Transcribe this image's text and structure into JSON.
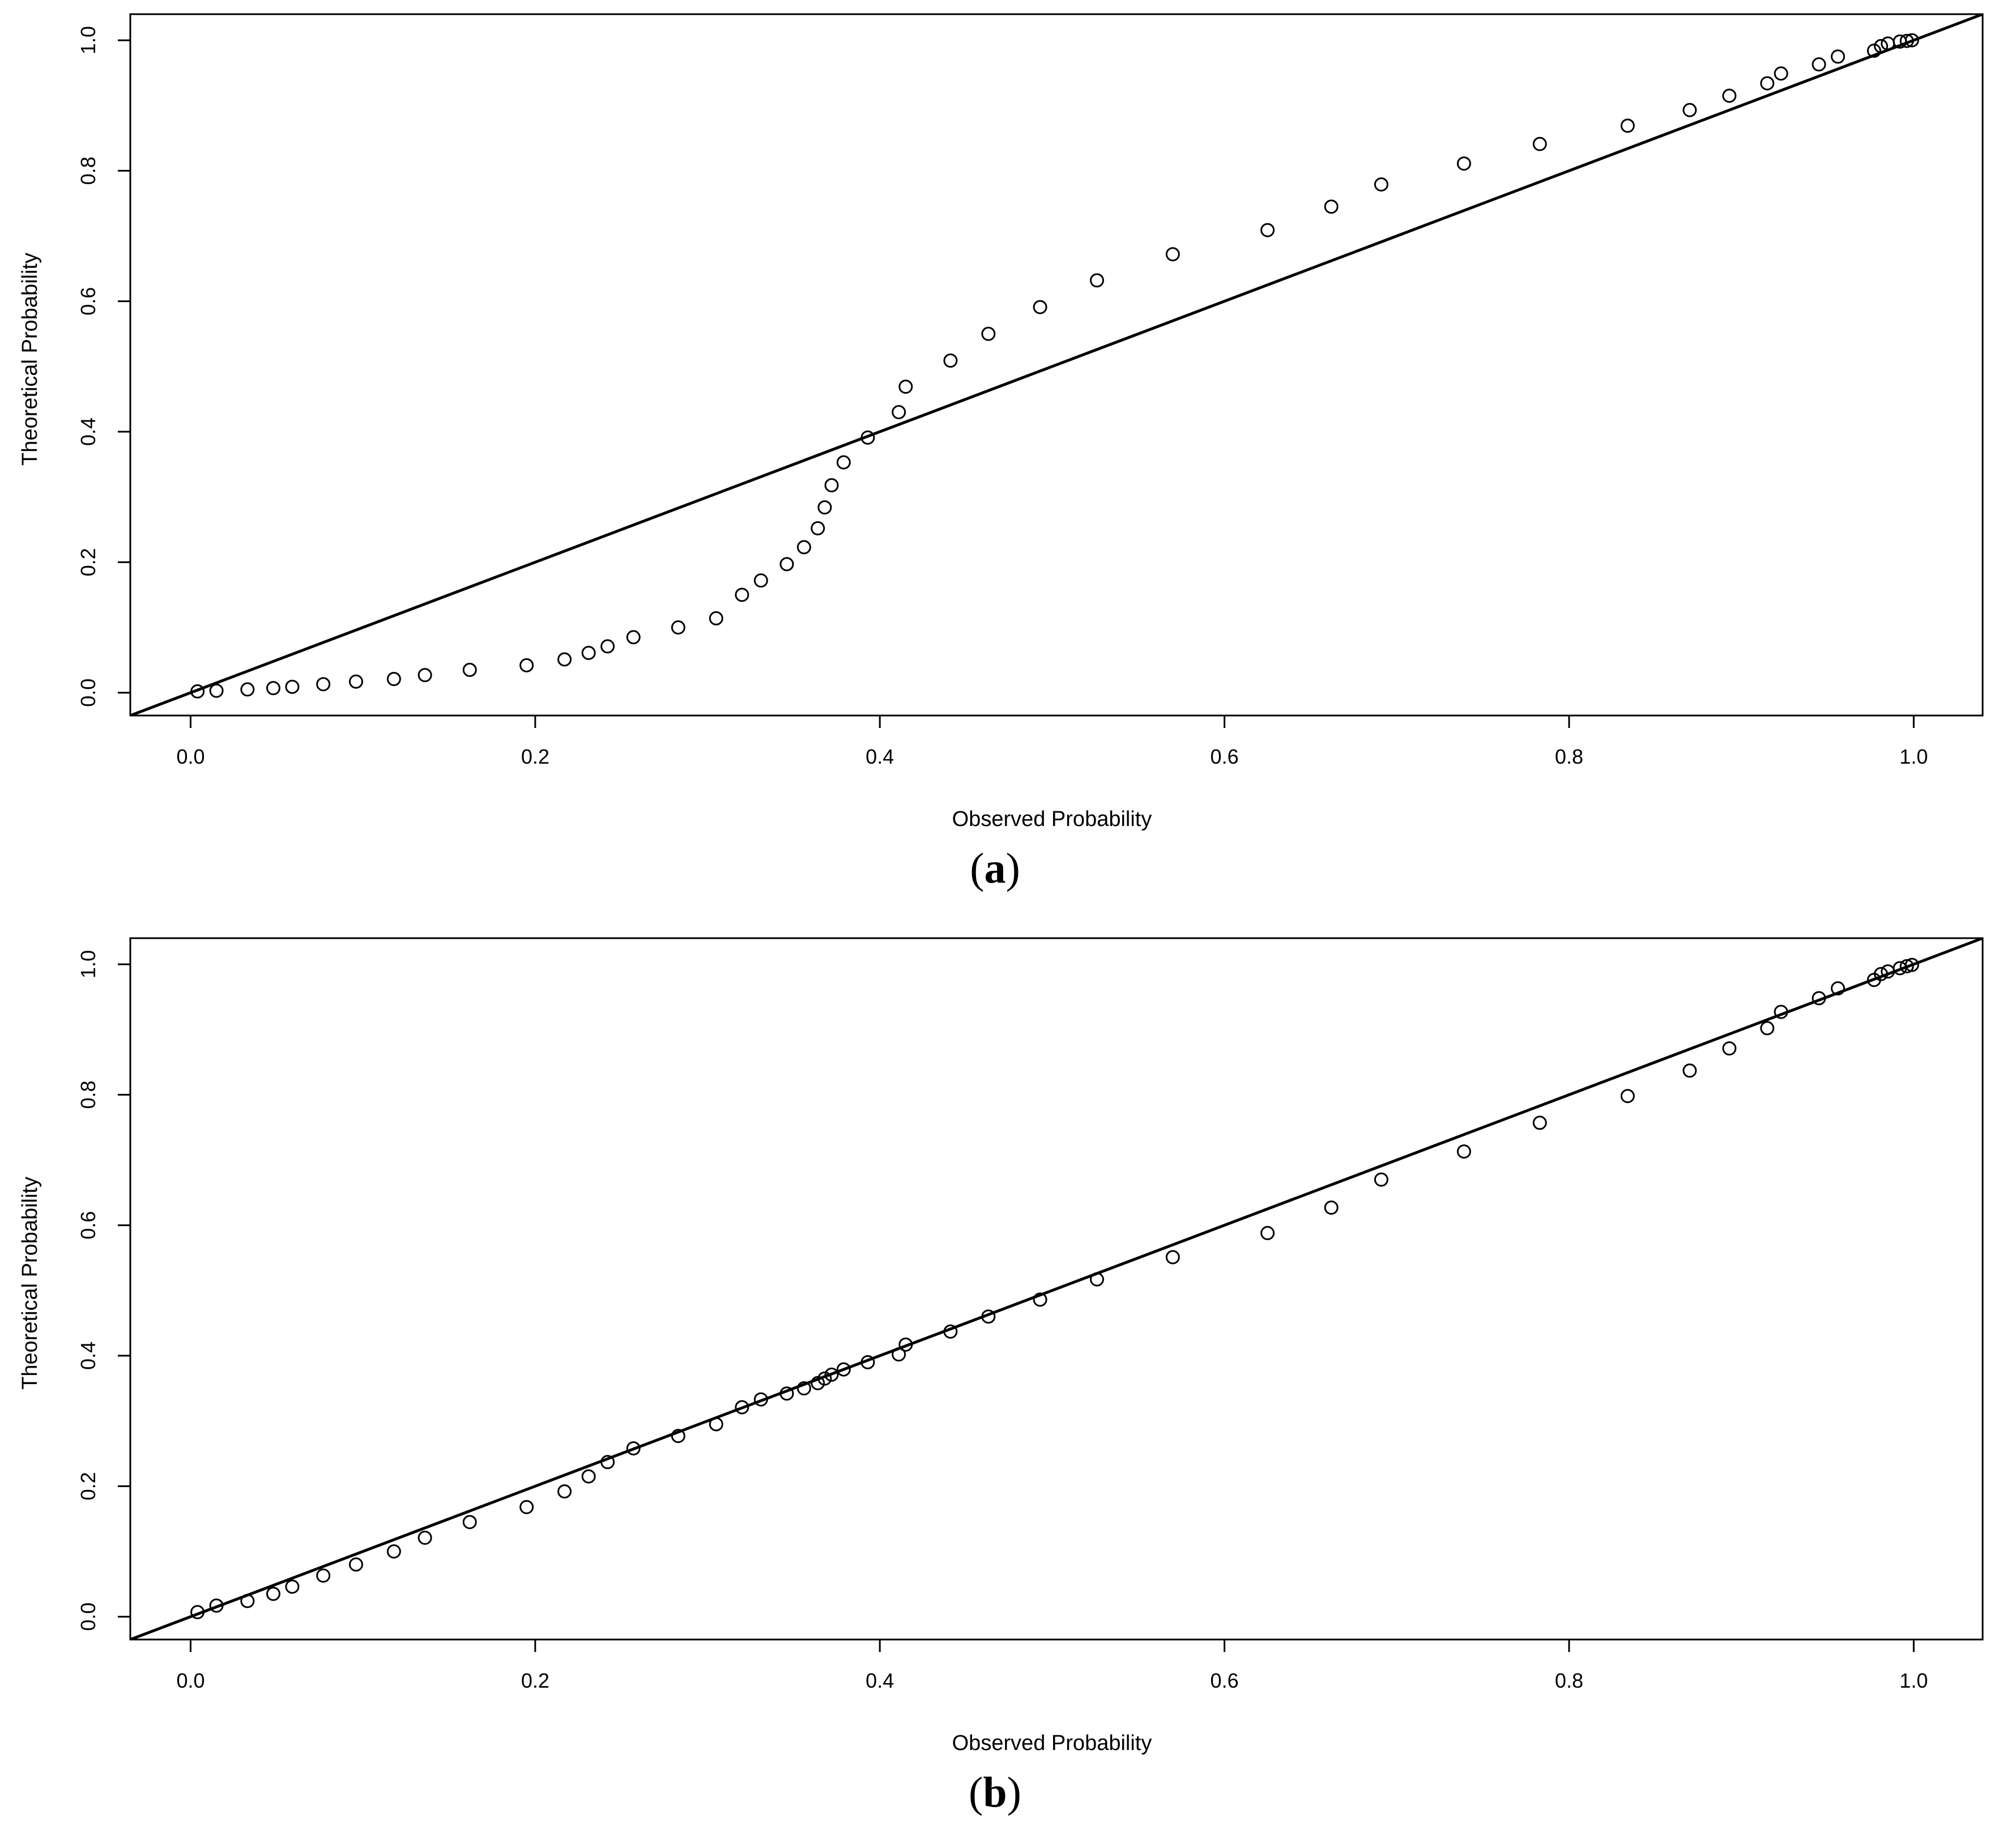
{
  "chart_data": [
    {
      "type": "scatter",
      "caption": "(a)",
      "caption_letter": "a",
      "xlabel": "Observed Probability",
      "ylabel": "Theoretical Probability",
      "xlim": [
        -0.035,
        1.04
      ],
      "ylim": [
        -0.035,
        1.04
      ],
      "xticks": [
        "0.0",
        "0.2",
        "0.4",
        "0.6",
        "0.8",
        "1.0"
      ],
      "yticks": [
        "0.0",
        "0.2",
        "0.4",
        "0.6",
        "0.8",
        "1.0"
      ],
      "reference_line": {
        "slope": 1,
        "intercept": 0
      },
      "marker": "open-circle",
      "grid": false,
      "series": [
        {
          "x": [
            0.004,
            0.015,
            0.033,
            0.048,
            0.059,
            0.077,
            0.096,
            0.118,
            0.136,
            0.162,
            0.195,
            0.217,
            0.231,
            0.242,
            0.257,
            0.283,
            0.305,
            0.32,
            0.331,
            0.346,
            0.356,
            0.364,
            0.368,
            0.372,
            0.379,
            0.393,
            0.411,
            0.415,
            0.441,
            0.463,
            0.493,
            0.526,
            0.57,
            0.625,
            0.662,
            0.691,
            0.739,
            0.783,
            0.834,
            0.87,
            0.893,
            0.915,
            0.923,
            0.945,
            0.956,
            0.977,
            0.981,
            0.985,
            0.992,
            0.996,
            0.999
          ],
          "y": [
            0.002,
            0.003,
            0.005,
            0.007,
            0.009,
            0.013,
            0.017,
            0.021,
            0.027,
            0.035,
            0.042,
            0.051,
            0.061,
            0.071,
            0.085,
            0.1,
            0.114,
            0.15,
            0.172,
            0.197,
            0.223,
            0.252,
            0.284,
            0.318,
            0.353,
            0.391,
            0.43,
            0.469,
            0.509,
            0.55,
            0.591,
            0.632,
            0.672,
            0.709,
            0.745,
            0.779,
            0.811,
            0.841,
            0.869,
            0.893,
            0.915,
            0.934,
            0.949,
            0.963,
            0.975,
            0.984,
            0.991,
            0.995,
            0.998,
            0.999,
            1.0
          ]
        }
      ]
    },
    {
      "type": "scatter",
      "caption": "(b)",
      "caption_letter": "b",
      "xlabel": "Observed Probability",
      "ylabel": "Theoretical Probability",
      "xlim": [
        -0.035,
        1.04
      ],
      "ylim": [
        -0.035,
        1.04
      ],
      "xticks": [
        "0.0",
        "0.2",
        "0.4",
        "0.6",
        "0.8",
        "1.0"
      ],
      "yticks": [
        "0.0",
        "0.2",
        "0.4",
        "0.6",
        "0.8",
        "1.0"
      ],
      "reference_line": {
        "slope": 1,
        "intercept": 0
      },
      "marker": "open-circle",
      "grid": false,
      "series": [
        {
          "x": [
            0.004,
            0.015,
            0.033,
            0.048,
            0.059,
            0.077,
            0.096,
            0.118,
            0.136,
            0.162,
            0.195,
            0.217,
            0.231,
            0.242,
            0.257,
            0.283,
            0.305,
            0.32,
            0.331,
            0.346,
            0.356,
            0.364,
            0.368,
            0.372,
            0.379,
            0.393,
            0.411,
            0.415,
            0.441,
            0.463,
            0.493,
            0.526,
            0.57,
            0.625,
            0.662,
            0.691,
            0.739,
            0.783,
            0.834,
            0.87,
            0.893,
            0.915,
            0.923,
            0.945,
            0.956,
            0.977,
            0.981,
            0.985,
            0.992,
            0.996,
            0.999
          ],
          "y": [
            0.007,
            0.017,
            0.024,
            0.035,
            0.046,
            0.063,
            0.08,
            0.1,
            0.121,
            0.145,
            0.168,
            0.192,
            0.215,
            0.237,
            0.258,
            0.277,
            0.295,
            0.321,
            0.333,
            0.342,
            0.35,
            0.358,
            0.365,
            0.371,
            0.379,
            0.39,
            0.402,
            0.417,
            0.437,
            0.46,
            0.486,
            0.517,
            0.551,
            0.588,
            0.627,
            0.67,
            0.713,
            0.757,
            0.798,
            0.837,
            0.871,
            0.902,
            0.927,
            0.948,
            0.963,
            0.976,
            0.985,
            0.989,
            0.994,
            0.997,
            0.999
          ]
        }
      ]
    }
  ]
}
